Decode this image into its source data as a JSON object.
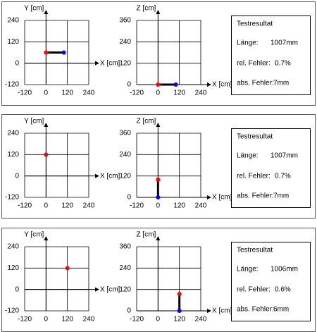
{
  "panels": [
    {
      "xy": {
        "xlabel": "X [cm]",
        "ylabel": "Y [cm]",
        "xlim": [
          -120,
          240
        ],
        "ylim": [
          -120,
          240
        ],
        "xticks": [
          -120,
          0,
          120,
          240
        ],
        "yticks": [
          -120,
          0,
          120,
          240
        ],
        "points": [
          {
            "x": 0,
            "y": 60,
            "color": "#ff0000"
          },
          {
            "x": 100,
            "y": 60,
            "color": "#0000ff"
          }
        ]
      },
      "xz": {
        "xlabel": "X [cm]",
        "ylabel": "Z [cm]",
        "xlim": [
          -120,
          240
        ],
        "ylim": [
          0,
          360
        ],
        "xticks": [
          -120,
          0,
          120,
          240
        ],
        "yticks": [
          0,
          120,
          240,
          360
        ],
        "points": [
          {
            "x": 0,
            "y": 0,
            "color": "#ff0000"
          },
          {
            "x": 100,
            "y": 0,
            "color": "#0000ff"
          }
        ]
      },
      "result": {
        "title": "Testresultat",
        "length_label": "Länge:",
        "length_value": "1007mm",
        "rel_label": "rel. Fehler:",
        "rel_value": "0.7%",
        "abs_label": "abs. Fehler:",
        "abs_value": "7mm"
      }
    },
    {
      "xy": {
        "xlabel": "X [cm]",
        "ylabel": "Y [cm]",
        "xlim": [
          -120,
          240
        ],
        "ylim": [
          -120,
          240
        ],
        "xticks": [
          -120,
          0,
          120,
          240
        ],
        "yticks": [
          -120,
          0,
          120,
          240
        ],
        "points": [
          {
            "x": 0,
            "y": 120,
            "color": "#ff0000"
          }
        ]
      },
      "xz": {
        "xlabel": "X [cm]",
        "ylabel": "Z [cm]",
        "xlim": [
          -120,
          240
        ],
        "ylim": [
          0,
          360
        ],
        "xticks": [
          -120,
          0,
          120,
          240
        ],
        "yticks": [
          0,
          120,
          240,
          360
        ],
        "points": [
          {
            "x": 0,
            "y": 100,
            "color": "#ff0000"
          },
          {
            "x": 0,
            "y": 0,
            "color": "#0000ff"
          }
        ]
      },
      "result": {
        "title": "Testresultat",
        "length_label": "Länge:",
        "length_value": "1007mm",
        "rel_label": "rel. Fehler:",
        "rel_value": "0.7%",
        "abs_label": "abs. Fehler:",
        "abs_value": "7mm"
      }
    },
    {
      "xy": {
        "xlabel": "X [cm]",
        "ylabel": "Y [cm]",
        "xlim": [
          -120,
          240
        ],
        "ylim": [
          -120,
          240
        ],
        "xticks": [
          -120,
          0,
          120,
          240
        ],
        "yticks": [
          -120,
          0,
          120,
          240
        ],
        "points": [
          {
            "x": 120,
            "y": 120,
            "color": "#ff0000"
          }
        ]
      },
      "xz": {
        "xlabel": "X [cm]",
        "ylabel": "Z [cm]",
        "xlim": [
          -120,
          240
        ],
        "ylim": [
          0,
          360
        ],
        "xticks": [
          -120,
          0,
          120,
          240
        ],
        "yticks": [
          0,
          120,
          240,
          360
        ],
        "points": [
          {
            "x": 120,
            "y": 95,
            "color": "#ff0000"
          },
          {
            "x": 120,
            "y": 0,
            "color": "#0000ff"
          }
        ]
      },
      "result": {
        "title": "Testresultat",
        "length_label": "Länge:",
        "length_value": "1006mm",
        "rel_label": "rel. Fehler:",
        "rel_value": "0.6%",
        "abs_label": "abs. Fehler:",
        "abs_value": "6mm"
      }
    }
  ]
}
